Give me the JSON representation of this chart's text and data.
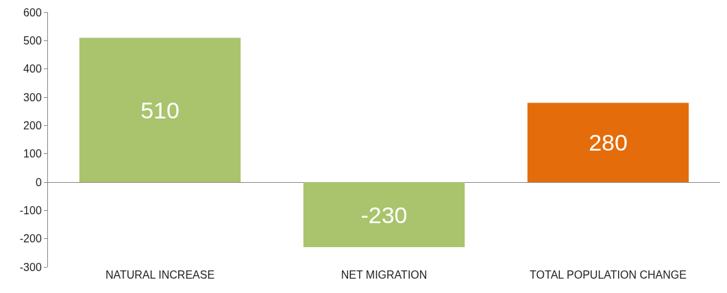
{
  "chart_data": {
    "type": "bar",
    "categories": [
      "NATURAL INCREASE",
      "NET MIGRATION",
      "TOTAL POPULATION CHANGE"
    ],
    "values": [
      510,
      -230,
      280
    ],
    "colors": [
      "#a9c46c",
      "#a9c46c",
      "#e46c0a"
    ],
    "ylim": [
      -300,
      600
    ],
    "yticks": [
      -300,
      -200,
      -100,
      0,
      100,
      200,
      300,
      400,
      500,
      600
    ],
    "data_labels": true
  }
}
